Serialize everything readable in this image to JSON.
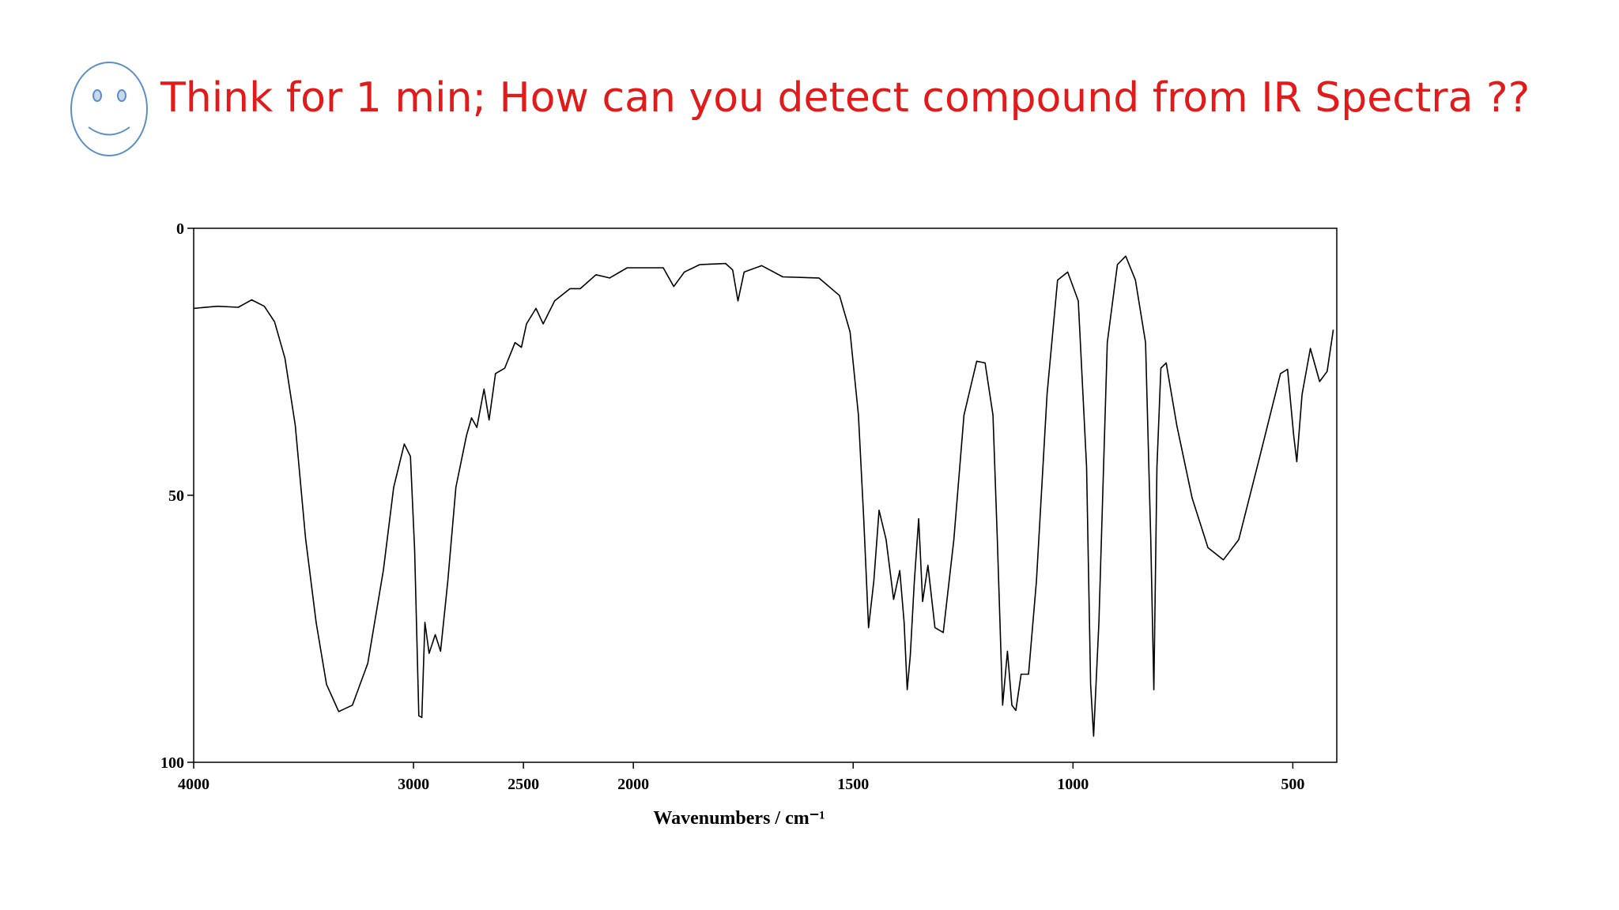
{
  "title": "Think for 1 min; How can you detect compound from IR Spectra ??",
  "chart_data": {
    "type": "line",
    "x_label": "Wavenumbers / cm⁻¹",
    "color": "#000000",
    "xlim": [
      4000,
      400
    ],
    "x_expansion": {
      "below": 2000,
      "factor": 2
    },
    "xticks": [
      4000,
      3000,
      2500,
      2000,
      1500,
      1000,
      500
    ],
    "ylim": [
      100,
      0
    ],
    "yticks": [
      0,
      50,
      100
    ],
    "x": [
      4000,
      3892,
      3797,
      3736,
      3679,
      3632,
      3585,
      3538,
      3491,
      3443,
      3396,
      3340,
      3278,
      3208,
      3137,
      3090,
      3042,
      3014,
      2995,
      2976,
      2962,
      2948,
      2929,
      2901,
      2877,
      2844,
      2807,
      2759,
      2736,
      2712,
      2679,
      2656,
      2627,
      2585,
      2538,
      2509,
      2486,
      2443,
      2410,
      2358,
      2288,
      2241,
      2170,
      2108,
      2028,
      1979,
      1932,
      1908,
      1884,
      1849,
      1790,
      1774,
      1762,
      1748,
      1708,
      1660,
      1578,
      1531,
      1507,
      1488,
      1476,
      1465,
      1453,
      1441,
      1425,
      1408,
      1394,
      1384,
      1377,
      1370,
      1361,
      1351,
      1342,
      1330,
      1314,
      1295,
      1271,
      1248,
      1219,
      1200,
      1182,
      1172,
      1160,
      1149,
      1139,
      1130,
      1118,
      1101,
      1083,
      1059,
      1035,
      1012,
      988,
      969,
      960,
      953,
      941,
      922,
      899,
      880,
      858,
      835,
      823,
      816,
      809,
      800,
      788,
      764,
      729,
      693,
      658,
      623,
      575,
      528,
      512,
      498,
      491,
      479,
      460,
      439,
      422,
      408
    ],
    "values": [
      15,
      14.6,
      14.8,
      13.4,
      14.6,
      17.5,
      24.3,
      36.9,
      58,
      73.8,
      85.4,
      90.5,
      89.3,
      81.5,
      64,
      48.5,
      40.4,
      42.7,
      60.2,
      91.3,
      91.6,
      73.8,
      79.6,
      76.1,
      79.2,
      66,
      48.5,
      38.8,
      35.5,
      37.3,
      30.1,
      35.9,
      27.2,
      26.2,
      21.4,
      22.3,
      17.9,
      15,
      17.9,
      13.6,
      11.3,
      11.3,
      8.7,
      9.3,
      7.4,
      7.4,
      7.4,
      10.9,
      8.2,
      6.8,
      6.6,
      7.8,
      13.6,
      8.2,
      7,
      9.1,
      9.3,
      12.6,
      19.4,
      35,
      54.4,
      74.8,
      66,
      52.8,
      58.3,
      69.5,
      64.1,
      73.8,
      86.4,
      80,
      66.4,
      54.4,
      69.9,
      63.1,
      74.8,
      75.7,
      58.3,
      35,
      24.9,
      25.2,
      35,
      58.3,
      89.3,
      79.2,
      89.3,
      90.3,
      83.5,
      83.5,
      66,
      31.1,
      9.7,
      8.2,
      13.6,
      44.7,
      85.4,
      95.1,
      73.8,
      21.4,
      6.8,
      5.2,
      9.7,
      21.4,
      58.3,
      86.4,
      44.7,
      26.2,
      25.2,
      36.9,
      50.5,
      59.8,
      62.1,
      58.3,
      42.7,
      27.2,
      26.4,
      38.8,
      43.7,
      31.1,
      22.5,
      28.7,
      26.8,
      19
    ]
  }
}
